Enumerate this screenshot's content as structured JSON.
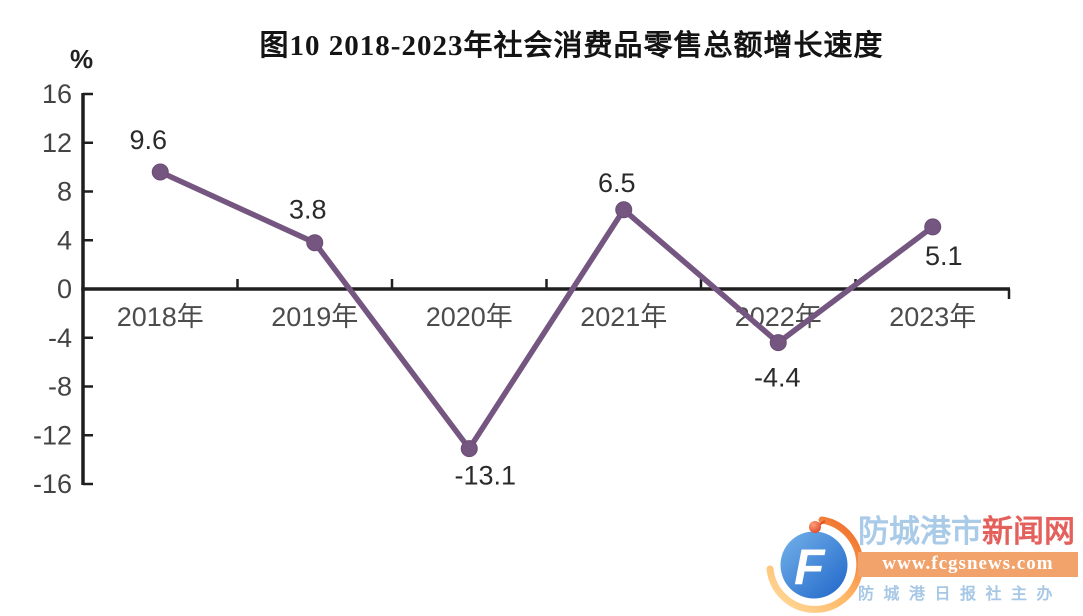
{
  "chart": {
    "title": "图10 2018-2023年社会消费品零售总额增长速度",
    "unit": "%"
  },
  "chart_data": {
    "type": "line",
    "title": "图10 2018-2023年社会消费品零售总额增长速度",
    "ylabel": "%",
    "categories": [
      "2018年",
      "2019年",
      "2020年",
      "2021年",
      "2022年",
      "2023年"
    ],
    "values": [
      9.6,
      3.8,
      -13.1,
      6.5,
      -4.4,
      5.1
    ],
    "point_labels": [
      "9.6",
      "3.8",
      "-13.1",
      "6.5",
      "-4.4",
      "5.1"
    ],
    "yticks": [
      16,
      12,
      8,
      4,
      0,
      -4,
      -8,
      -12,
      -16
    ],
    "ylim": [
      -16,
      16
    ],
    "ytick_step": 4,
    "grid": false,
    "legend": "none",
    "line_color": "#745680",
    "axis_color": "#1f1f1f",
    "tick_label_color": "#434343",
    "category_label_color": "#4c4c4c",
    "data_label_color": "#2a2a2a",
    "marker": "circle"
  },
  "watermark": {
    "site_name_blue": "防城港市",
    "site_name_red": "新闻网",
    "url": "www.fcgsnews.com",
    "publisher": "防城港日报社主办",
    "colors": {
      "light_blue": "#a9cbe8",
      "red": "#e4605c",
      "bar_orange": "#f2a36b",
      "logo_blue": "#2a72cf",
      "swoosh_orange": "#ee6a28",
      "swoosh_yellow": "#ffd27f"
    }
  }
}
